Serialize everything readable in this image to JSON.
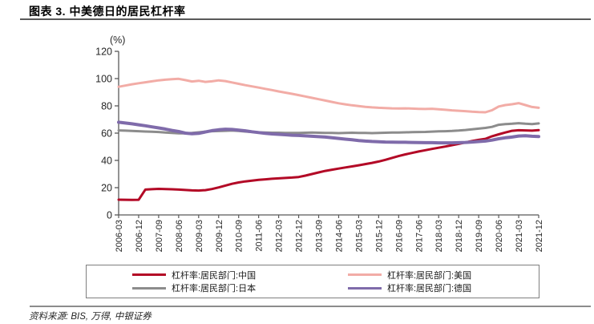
{
  "header": {
    "title": "图表 3. 中美德日的居民杠杆率"
  },
  "footer": {
    "source": "资料来源: BIS, 万得, 中银证券"
  },
  "chart_data": {
    "type": "line",
    "title": "图表 3. 中美德日的居民杠杆率",
    "unit_label": "(%)",
    "xlabel": "",
    "ylabel": "(%)",
    "ylim": [
      0,
      120
    ],
    "yticks": [
      0,
      20,
      40,
      60,
      80,
      100,
      120
    ],
    "grid": false,
    "legend_position": "bottom-box",
    "x_tick_step": 3,
    "x": [
      "2006-03",
      "2006-06",
      "2006-09",
      "2006-12",
      "2007-03",
      "2007-06",
      "2007-09",
      "2007-12",
      "2008-03",
      "2008-06",
      "2008-09",
      "2008-12",
      "2009-03",
      "2009-06",
      "2009-09",
      "2009-12",
      "2010-03",
      "2010-06",
      "2010-09",
      "2010-12",
      "2011-03",
      "2011-06",
      "2011-09",
      "2011-12",
      "2012-03",
      "2012-06",
      "2012-09",
      "2012-12",
      "2013-03",
      "2013-06",
      "2013-09",
      "2013-12",
      "2014-03",
      "2014-06",
      "2014-09",
      "2014-12",
      "2015-03",
      "2015-06",
      "2015-09",
      "2015-12",
      "2016-03",
      "2016-06",
      "2016-09",
      "2016-12",
      "2017-03",
      "2017-06",
      "2017-09",
      "2017-12",
      "2018-03",
      "2018-06",
      "2018-09",
      "2018-12",
      "2019-03",
      "2019-06",
      "2019-09",
      "2019-12",
      "2020-03",
      "2020-06",
      "2020-09",
      "2020-12",
      "2021-03",
      "2021-06",
      "2021-09",
      "2021-12"
    ],
    "visible_x_tick_labels": [
      "2006-03",
      "2006-12",
      "2007-09",
      "2008-06",
      "2009-03",
      "2009-12",
      "2010-09",
      "2011-06",
      "2012-03",
      "2012-12",
      "2013-09",
      "2014-06",
      "2015-03",
      "2015-12",
      "2016-09",
      "2017-06",
      "2018-03",
      "2018-12",
      "2019-09",
      "2020-06",
      "2021-03",
      "2021-12"
    ],
    "series": [
      {
        "key": "china",
        "name": "杠杆率:居民部门:中国",
        "color": "#b30926",
        "values": [
          11.2,
          11.1,
          11.0,
          11.1,
          18.6,
          18.9,
          19.1,
          19.0,
          18.8,
          18.6,
          18.3,
          18.0,
          17.9,
          18.2,
          19.0,
          20.2,
          21.5,
          22.8,
          23.8,
          24.6,
          25.2,
          25.7,
          26.1,
          26.5,
          26.8,
          27.1,
          27.4,
          27.8,
          28.8,
          30.0,
          31.2,
          32.3,
          33.2,
          34.0,
          34.8,
          35.6,
          36.4,
          37.3,
          38.2,
          39.2,
          40.4,
          41.8,
          43.2,
          44.4,
          45.5,
          46.5,
          47.5,
          48.4,
          49.3,
          50.2,
          51.2,
          52.1,
          53.2,
          54.2,
          55.1,
          55.8,
          57.7,
          59.1,
          60.5,
          61.7,
          62.1,
          62.0,
          61.8,
          62.2
        ]
      },
      {
        "key": "usa",
        "name": "杠杆率:居民部门:美国",
        "color": "#f2aca6",
        "values": [
          94.0,
          94.9,
          95.8,
          96.6,
          97.3,
          98.0,
          98.7,
          99.2,
          99.6,
          99.8,
          98.9,
          97.9,
          98.4,
          97.6,
          98.0,
          98.7,
          98.2,
          97.2,
          96.2,
          95.2,
          94.3,
          93.4,
          92.5,
          91.6,
          90.6,
          89.7,
          88.8,
          87.9,
          86.9,
          85.9,
          84.9,
          83.9,
          82.9,
          81.9,
          81.1,
          80.4,
          79.8,
          79.3,
          78.9,
          78.6,
          78.4,
          78.2,
          78.1,
          78.2,
          78.0,
          77.8,
          77.7,
          77.9,
          77.5,
          77.1,
          76.7,
          76.4,
          76.1,
          75.7,
          75.4,
          75.3,
          76.8,
          79.5,
          80.6,
          81.2,
          82.0,
          80.6,
          79.2,
          78.6
        ]
      },
      {
        "key": "japan",
        "name": "杠杆率:居民部门:日本",
        "color": "#8c8c8c",
        "values": [
          62.0,
          61.8,
          61.6,
          61.4,
          61.2,
          61.0,
          60.8,
          60.5,
          60.2,
          59.9,
          59.8,
          60.1,
          60.6,
          61.1,
          61.4,
          61.5,
          61.7,
          61.9,
          61.6,
          61.2,
          60.9,
          60.6,
          60.4,
          60.3,
          60.3,
          60.2,
          60.1,
          60.1,
          60.3,
          60.4,
          60.3,
          60.2,
          60.1,
          60.0,
          60.2,
          60.3,
          60.2,
          60.1,
          60.0,
          60.1,
          60.3,
          60.4,
          60.5,
          60.6,
          60.7,
          60.8,
          60.9,
          61.1,
          61.3,
          61.4,
          61.6,
          61.9,
          62.3,
          62.8,
          63.3,
          63.8,
          64.6,
          66.1,
          66.6,
          66.9,
          67.3,
          66.9,
          66.6,
          67.1
        ]
      },
      {
        "key": "germany",
        "name": "杠杆率:居民部门:德国",
        "color": "#7f6baa",
        "values": [
          68.0,
          67.4,
          66.8,
          66.1,
          65.4,
          64.6,
          63.8,
          63.0,
          62.0,
          61.2,
          60.0,
          59.6,
          59.8,
          60.8,
          61.8,
          62.5,
          62.9,
          62.7,
          62.2,
          61.7,
          61.0,
          60.4,
          59.8,
          59.4,
          59.1,
          58.8,
          58.5,
          58.3,
          58.0,
          57.7,
          57.4,
          57.1,
          56.6,
          56.1,
          55.6,
          55.1,
          54.6,
          54.2,
          53.9,
          53.7,
          53.5,
          53.4,
          53.3,
          53.3,
          53.2,
          53.1,
          53.0,
          53.0,
          52.9,
          52.9,
          52.9,
          53.0,
          53.2,
          53.5,
          53.8,
          54.2,
          54.9,
          55.9,
          56.6,
          57.1,
          57.9,
          58.1,
          57.7,
          57.5
        ]
      }
    ],
    "legend_rows": [
      [
        0,
        1
      ],
      [
        2,
        3
      ]
    ]
  }
}
